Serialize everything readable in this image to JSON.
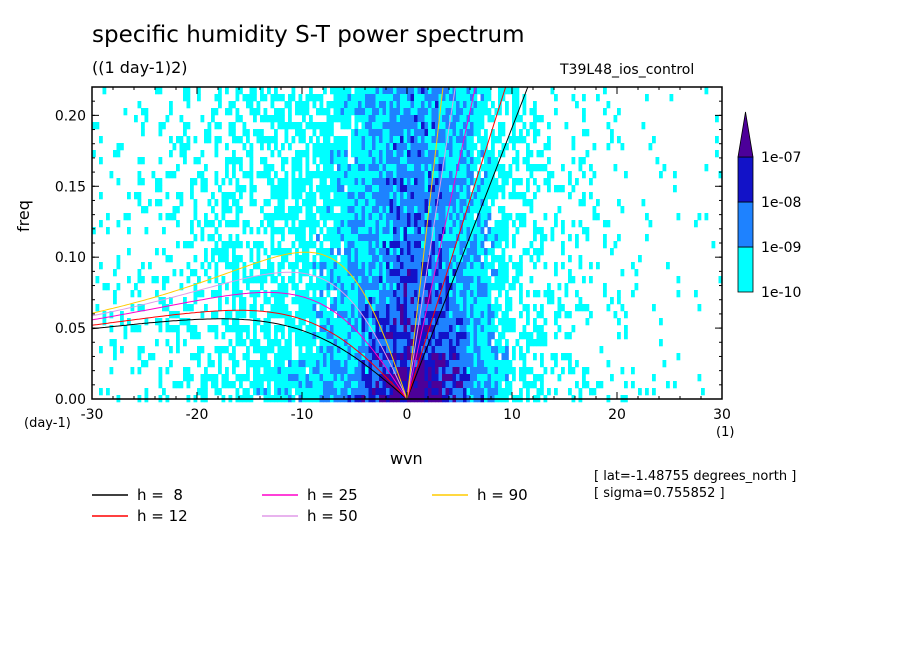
{
  "chart_data": {
    "type": "heatmap",
    "title": "specific humidity S-T power spectrum",
    "subtitle": "((1 day-1)2)",
    "run_label": "T39L48_ios_control",
    "xlabel": "wvn",
    "ylabel": "freq",
    "x_unit": "(1)",
    "y_unit": "(day-1)",
    "xlim": [
      -30,
      30
    ],
    "ylim": [
      0,
      0.22
    ],
    "x_ticks": [
      "-30",
      "-20",
      "-10",
      "0",
      "10",
      "20",
      "30"
    ],
    "x_tick_values": [
      -30,
      -20,
      -10,
      0,
      10,
      20,
      30
    ],
    "y_ticks": [
      "0.00",
      "0.05",
      "0.10",
      "0.15",
      "0.20"
    ],
    "y_tick_values": [
      0,
      0.05,
      0.1,
      0.15,
      0.2
    ],
    "colorbar": {
      "levels": [
        "1e-10",
        "1e-09",
        "1e-08",
        "1e-07"
      ],
      "colors": [
        "#00ffff",
        "#1e82ff",
        "#1212c8",
        "#4c0099"
      ]
    },
    "series": [
      {
        "name": "h =  8",
        "h": 8,
        "color": "#000000"
      },
      {
        "name": "h = 12",
        "h": 12,
        "color": "#ff0000"
      },
      {
        "name": "h = 25",
        "h": 25,
        "color": "#ff00cc"
      },
      {
        "name": "h = 50",
        "h": 50,
        "color": "#e09ae8"
      },
      {
        "name": "h = 90",
        "h": 90,
        "color": "#ffcc00"
      }
    ],
    "annotations": [
      "[ lat=-1.48755 degrees_north ]",
      "[ sigma=0.755852 ]"
    ]
  }
}
